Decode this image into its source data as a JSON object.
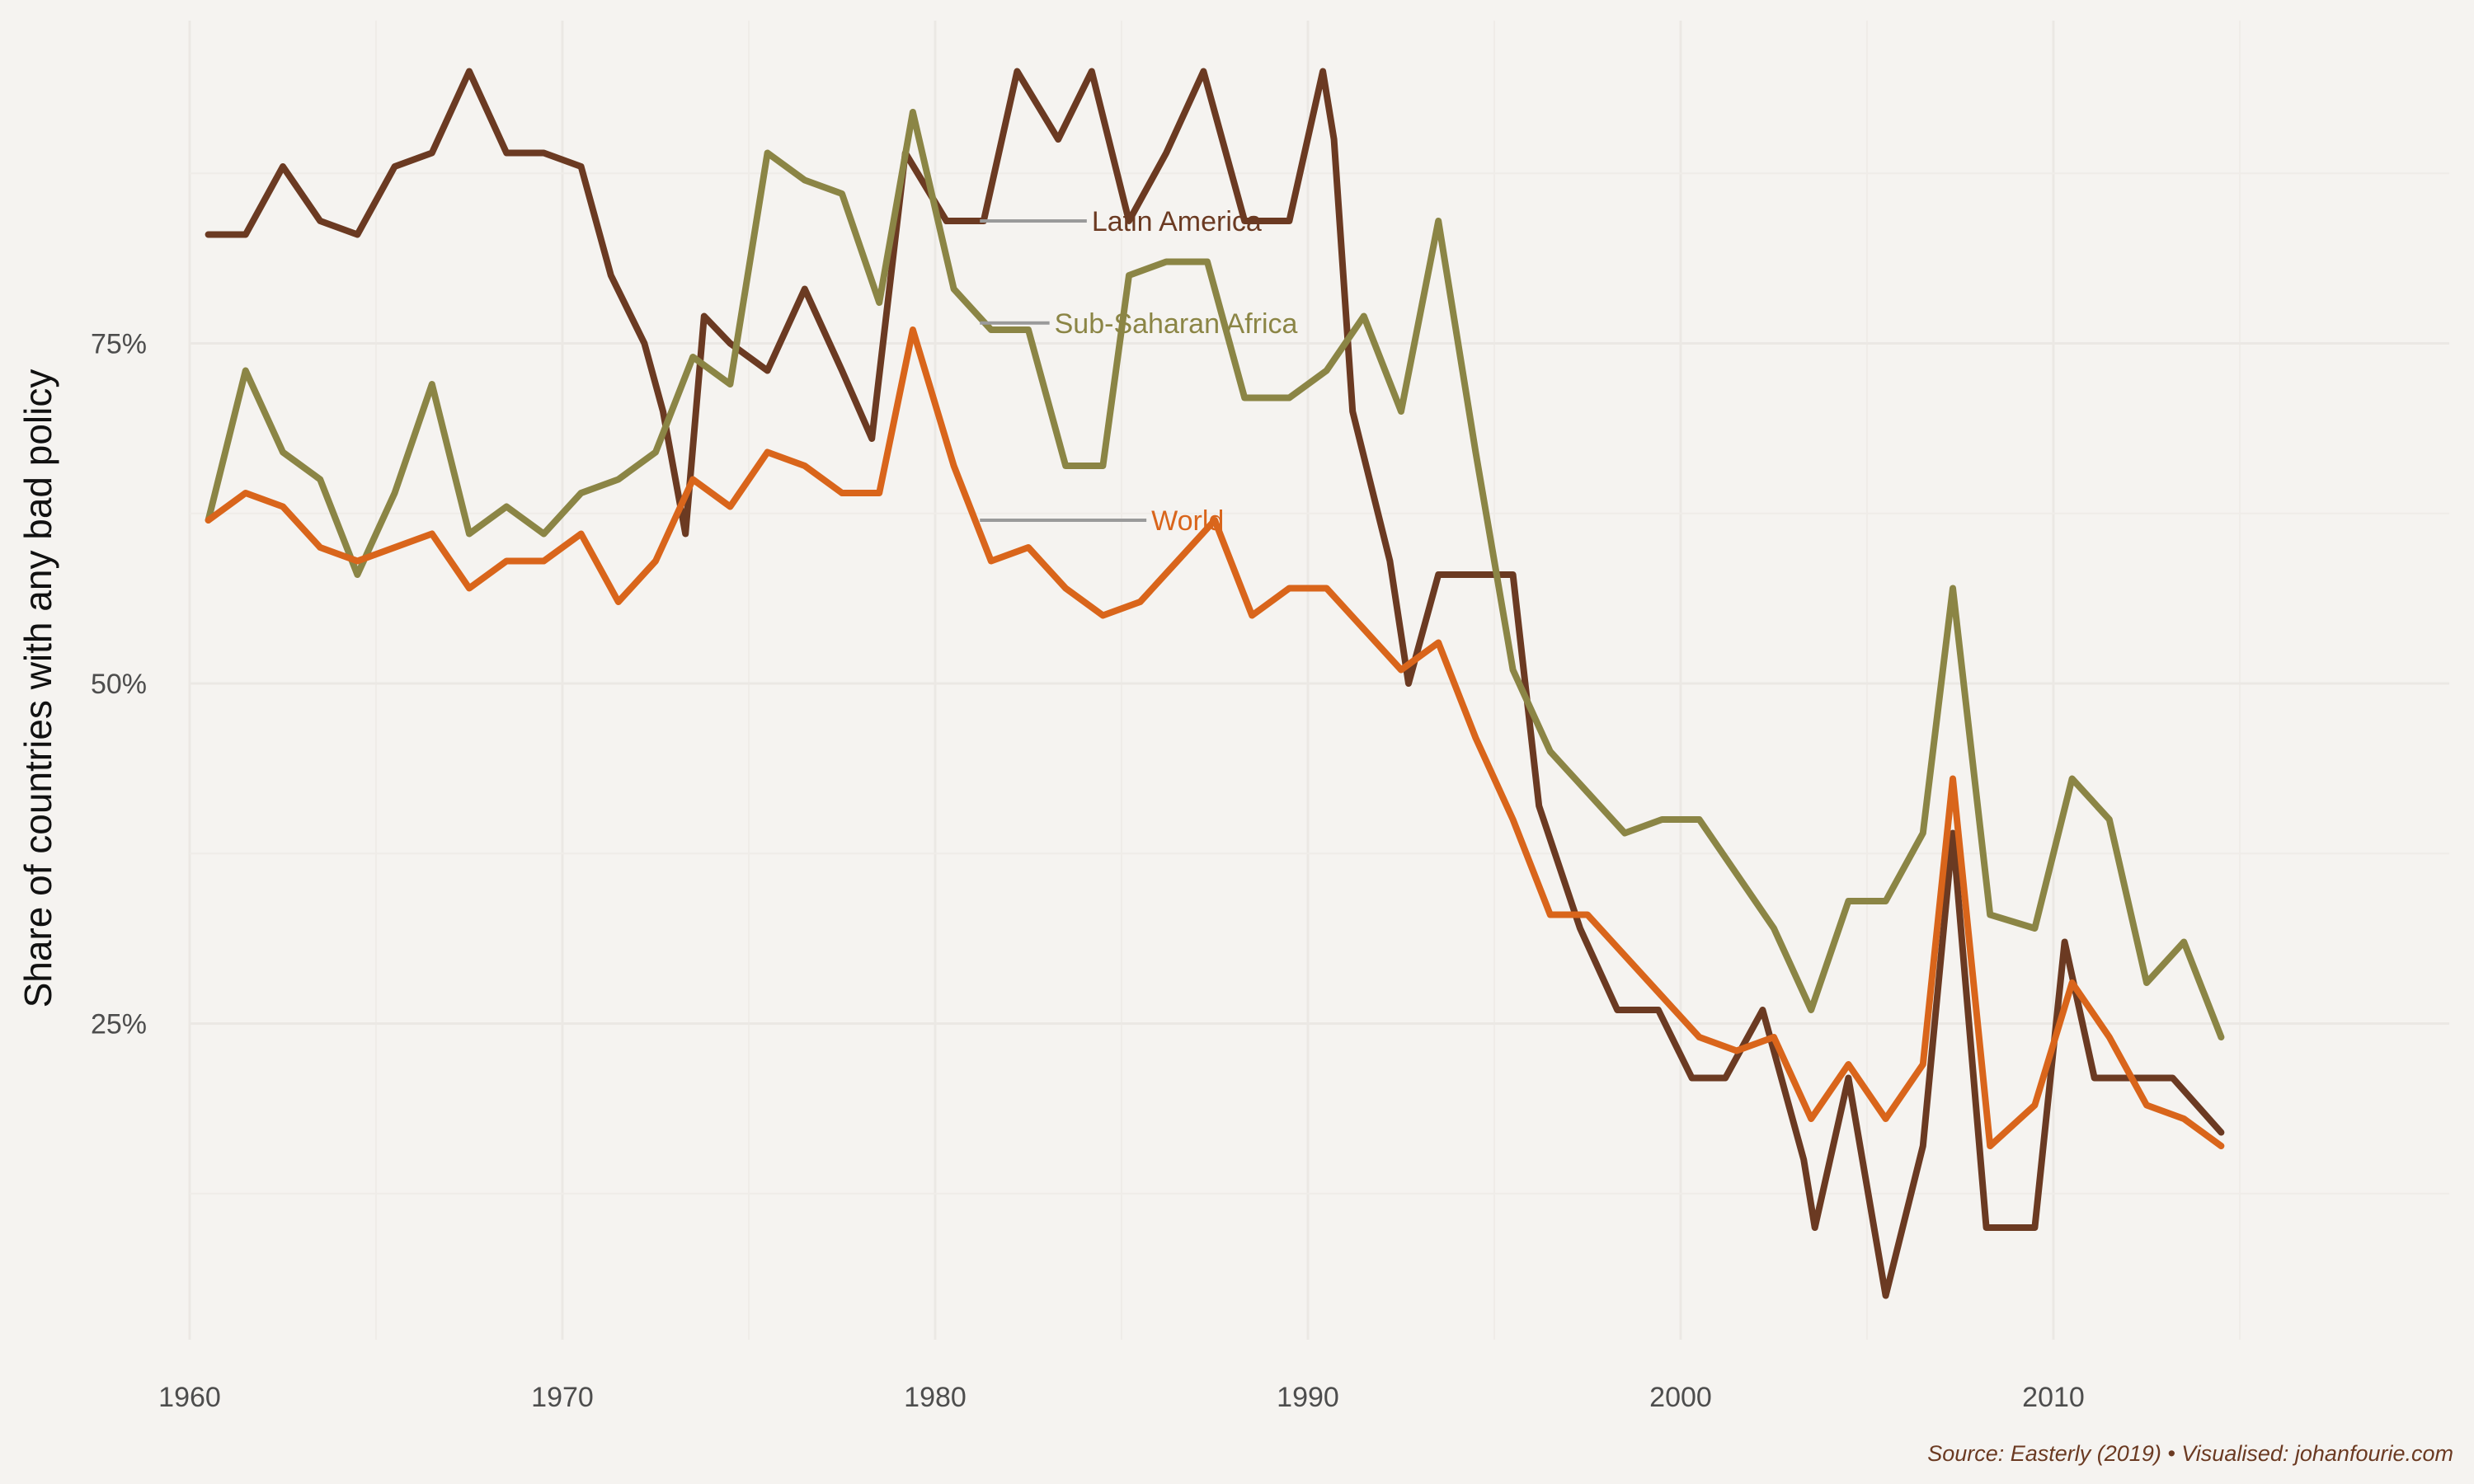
{
  "chart_data": {
    "type": "line",
    "title": "",
    "xlabel": "",
    "ylabel": "Share of countries with any bad policy",
    "xlim": [
      1960,
      2020
    ],
    "ylim": [
      0,
      100
    ],
    "x_ticks": [
      1960,
      1970,
      1980,
      1990,
      2000,
      2010
    ],
    "y_ticks": [
      25,
      50,
      75
    ],
    "y_tick_labels": [
      "25%",
      "50%",
      "75%"
    ],
    "grid": true,
    "legend": "none (direct line labels)",
    "caption": "Source: Easterly (2019) • Visualised: johanfourie.com",
    "series": [
      {
        "name": "Latin America",
        "color": "#6b3a22",
        "label_anchor": [
          1981.2,
          84
        ],
        "label_at": [
          1984.2,
          84
        ],
        "x": [
          1960.5,
          1961.5,
          1962.5,
          1963.5,
          1964.5,
          1965.5,
          1966.5,
          1967.5,
          1968.5,
          1969.5,
          1970.5,
          1971.3,
          1972.2,
          1972.7,
          1973.3,
          1973.8,
          1974.5,
          1975.5,
          1976.5,
          1977.5,
          1978.3,
          1979.2,
          1980.3,
          1981.3,
          1982.2,
          1983.3,
          1984.2,
          1985.2,
          1986.2,
          1987.2,
          1988.3,
          1989.5,
          1990.4,
          1990.7,
          1991.2,
          1992.2,
          1992.7,
          1993.5,
          1994.5,
          1995.5,
          1996.2,
          1997.3,
          1998.3,
          1999.4,
          2000.3,
          2001.2,
          2002.2,
          2003.3,
          2003.6,
          2004.5,
          2005.5,
          2006.5,
          2007.3,
          2008.2,
          2008.8,
          2009.5,
          2010.3,
          2011.1,
          2012.2,
          2013.2,
          2014.5
        ],
        "y": [
          83,
          83,
          88,
          84,
          83,
          88,
          89,
          95,
          89,
          89,
          88,
          80,
          75,
          70,
          61,
          77,
          75,
          73,
          79,
          73,
          68,
          89,
          84,
          84,
          95,
          90,
          95,
          84,
          89,
          95,
          84,
          84,
          95,
          90,
          70,
          59,
          50,
          58,
          58,
          58,
          41,
          32,
          26,
          26,
          21,
          21,
          26,
          15,
          10,
          21,
          5,
          16,
          39,
          10,
          10,
          10,
          31,
          21,
          21,
          21,
          17
        ]
      },
      {
        "name": "Sub-Saharan Africa",
        "color": "#8b8545",
        "label_anchor": [
          1981.2,
          76.5
        ],
        "label_at": [
          1983.2,
          76.5
        ],
        "x": [
          1960.5,
          1961.5,
          1962.5,
          1963.5,
          1964.5,
          1965.5,
          1966.5,
          1967.5,
          1968.5,
          1969.5,
          1970.5,
          1971.5,
          1972.5,
          1973.5,
          1974.5,
          1975.5,
          1976.5,
          1977.5,
          1978.5,
          1979.4,
          1980.5,
          1981.5,
          1982.5,
          1983.5,
          1984.5,
          1985.2,
          1986.2,
          1987.3,
          1988.3,
          1989.5,
          1990.5,
          1991.5,
          1992.5,
          1993.5,
          1994.5,
          1995.5,
          1996.5,
          1997.5,
          1998.5,
          1999.5,
          2000.5,
          2001.5,
          2002.5,
          2003.5,
          2004.5,
          2005.5,
          2006.5,
          2007.3,
          2008.3,
          2009.5,
          2010.5,
          2011.5,
          2012.5,
          2013.5,
          2014.5
        ],
        "y": [
          62,
          73,
          67,
          65,
          58,
          64,
          72,
          61,
          63,
          61,
          64,
          65,
          67,
          74,
          72,
          89,
          87,
          86,
          78,
          92,
          79,
          76,
          76,
          66,
          66,
          80,
          81,
          81,
          71,
          71,
          73,
          77,
          70,
          84,
          67,
          51,
          45,
          42,
          39,
          40,
          40,
          36,
          32,
          26,
          34,
          34,
          39,
          57,
          33,
          32,
          43,
          40,
          28,
          31,
          24
        ]
      },
      {
        "name": "World",
        "color": "#d9651b",
        "label_anchor": [
          1981.2,
          62
        ],
        "label_at": [
          1985.8,
          62
        ],
        "x": [
          1960.5,
          1961.5,
          1962.5,
          1963.5,
          1964.5,
          1965.5,
          1966.5,
          1967.5,
          1968.5,
          1969.5,
          1970.5,
          1971.5,
          1972.5,
          1973.5,
          1974.5,
          1975.5,
          1976.5,
          1977.5,
          1978.5,
          1979.4,
          1980.5,
          1981.5,
          1982.5,
          1983.5,
          1984.5,
          1985.5,
          1986.5,
          1987.5,
          1988.5,
          1989.5,
          1990.5,
          1991.5,
          1992.5,
          1993.5,
          1994.5,
          1995.5,
          1996.5,
          1997.5,
          1998.5,
          1999.5,
          2000.5,
          2001.5,
          2002.5,
          2003.5,
          2004.5,
          2005.5,
          2006.5,
          2007.3,
          2008.3,
          2009.5,
          2010.5,
          2011.5,
          2012.5,
          2013.5,
          2014.5
        ],
        "y": [
          62,
          64,
          63,
          60,
          59,
          60,
          61,
          57,
          59,
          59,
          61,
          56,
          59,
          65,
          63,
          67,
          66,
          64,
          64,
          76,
          66,
          59,
          60,
          57,
          55,
          56,
          59,
          62,
          55,
          57,
          57,
          54,
          51,
          53,
          46,
          40,
          33,
          33,
          30,
          27,
          24,
          23,
          24,
          18,
          22,
          18,
          22,
          43,
          16,
          19,
          28,
          24,
          19,
          18,
          16
        ]
      }
    ]
  }
}
